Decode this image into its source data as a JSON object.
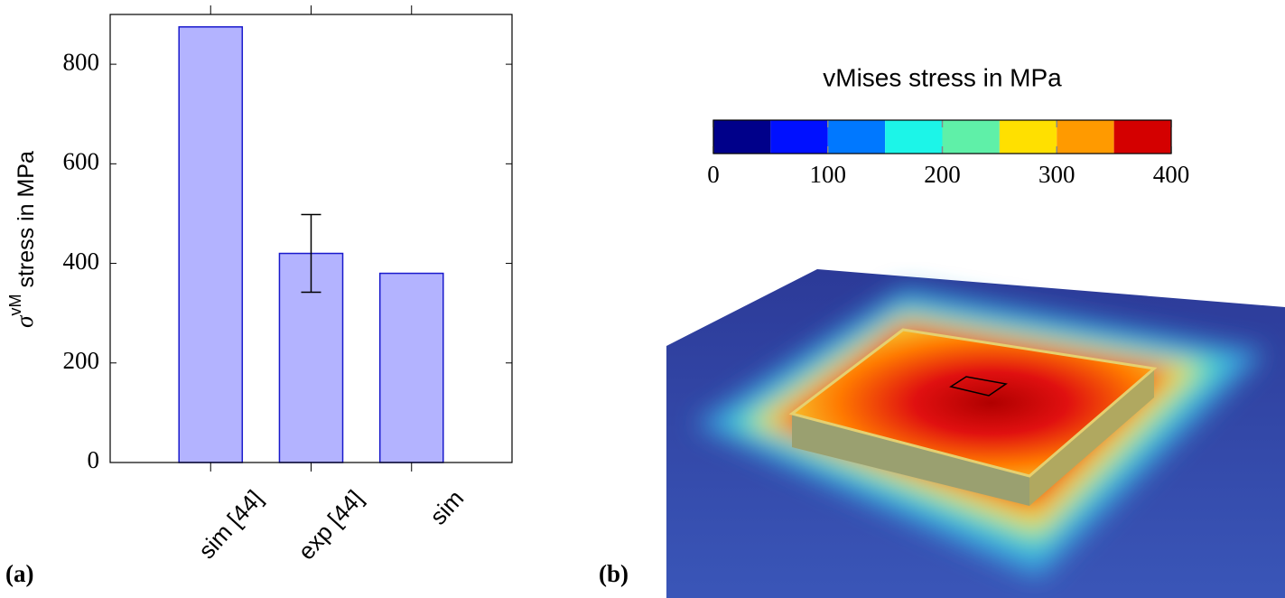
{
  "chart_data": [
    {
      "type": "bar",
      "label": "(a)",
      "y_label": {
        "symbol": "σ",
        "superscript": "vM",
        "text": "stress in MPa"
      },
      "categories": [
        "sim [44]",
        "exp [44]",
        "sim"
      ],
      "values": [
        875,
        420,
        380
      ],
      "errors": [
        null,
        78,
        null
      ],
      "color": "#b3b3ff",
      "edge_color": "#1a1acc",
      "ylim": [
        0,
        900
      ],
      "yticks": [
        0,
        200,
        400,
        600,
        800
      ]
    },
    {
      "type": "colorbar",
      "label": "(b)",
      "title": "vMises stress in MPa",
      "bins": [
        0,
        50,
        100,
        150,
        200,
        250,
        300,
        350,
        400
      ],
      "colors": [
        "#00008a",
        "#0010ff",
        "#0078ff",
        "#1cf5e8",
        "#5ff0a8",
        "#ffe000",
        "#ff9a00",
        "#d40000"
      ],
      "xlim": [
        0,
        400
      ],
      "xticks": [
        0,
        100,
        200,
        300,
        400
      ]
    }
  ]
}
